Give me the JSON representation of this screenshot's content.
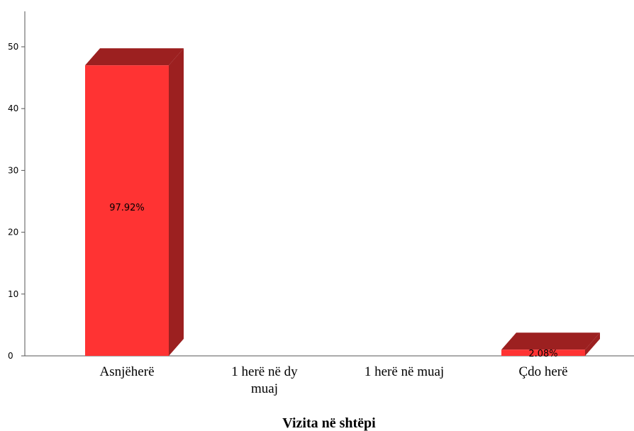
{
  "chart_data": {
    "type": "bar",
    "style": "3d",
    "title": "",
    "xlabel": "Vizita në shtëpi",
    "ylabel": "",
    "ylim": [
      0,
      55
    ],
    "yticks": [
      "0",
      "10",
      "20",
      "30",
      "40",
      "50"
    ],
    "categories": [
      "Asnjëherë",
      "1 herë në dy muaj",
      "1 herë në muaj",
      "Çdo herë"
    ],
    "category_lines": [
      [
        "Asnjëherë"
      ],
      [
        "1 herë në dy",
        "muaj"
      ],
      [
        "1 herë në muaj"
      ],
      [
        "Çdo herë"
      ]
    ],
    "values": [
      47,
      0,
      0,
      1
    ],
    "data_labels": [
      "97.92%",
      "",
      "",
      "2.08%"
    ],
    "grid": false,
    "colors": {
      "front": "#ff3333",
      "side": "#9c2020",
      "top": "#9c2020"
    }
  }
}
